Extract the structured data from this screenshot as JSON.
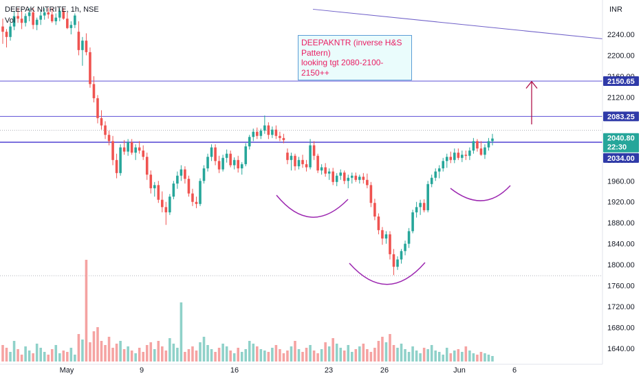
{
  "header": {
    "title": "DEEPAK NITRITE, 1h, NSE",
    "vol_label": "Vol"
  },
  "annotation": {
    "lines": [
      "DEEPAKNTR (inverse H&S",
      "Pattern)",
      "looking tgt 2080-2100-",
      "2150++"
    ]
  },
  "colors": {
    "up": "#26a69a",
    "down": "#ef5350",
    "up_vol": "#8fd1c9",
    "down_vol": "#f5a3a2",
    "level_line": "#5b4fd6",
    "trend_line": "#6e5fc8",
    "arc": "#9c27b0",
    "arrow": "#b0134a",
    "last_price_bg": "#26a69a",
    "level_label_bg": "#2f3aa8"
  },
  "chart_data": {
    "type": "candlestick",
    "symbol": "DEEPAK NITRITE",
    "interval": "1h",
    "exchange": "NSE",
    "currency": "INR",
    "y_range": [
      1620,
      2290
    ],
    "y_ticks": [
      1640,
      1680,
      1720,
      1760,
      1800,
      1840,
      1880,
      1920,
      1960,
      2000,
      2040,
      2080,
      2120,
      2160,
      2200,
      2240
    ],
    "x_ticks": [
      "May",
      "9",
      "16",
      "23",
      "26",
      "Jun",
      "6"
    ],
    "level_lines": [
      2150.65,
      2083.25,
      2034.0
    ],
    "level_labels": [
      "2150.65",
      "2083.25",
      "2034.00"
    ],
    "last_price": "2040.80",
    "countdown": "22:30",
    "dotted_levels": [
      2057,
      1779
    ],
    "trendline": [
      [
        455,
        2288
      ],
      [
        932,
        2224
      ]
    ],
    "pattern": "inverse head and shoulders",
    "target_arrow": [
      2068,
      2150
    ],
    "candles": [
      [
        2255,
        2270,
        2222,
        2245
      ],
      [
        2245,
        2250,
        2215,
        2235
      ],
      [
        2235,
        2262,
        2228,
        2255
      ],
      [
        2255,
        2285,
        2248,
        2275
      ],
      [
        2275,
        2290,
        2262,
        2270
      ],
      [
        2270,
        2285,
        2250,
        2262
      ],
      [
        2262,
        2280,
        2255,
        2275
      ],
      [
        2275,
        2290,
        2265,
        2282
      ],
      [
        2282,
        2290,
        2250,
        2258
      ],
      [
        2258,
        2272,
        2248,
        2268
      ],
      [
        2268,
        2285,
        2258,
        2276
      ],
      [
        2276,
        2290,
        2268,
        2282
      ],
      [
        2282,
        2290,
        2270,
        2278
      ],
      [
        2278,
        2290,
        2262,
        2265
      ],
      [
        2265,
        2280,
        2258,
        2272
      ],
      [
        2272,
        2290,
        2265,
        2285
      ],
      [
        2285,
        2290,
        2268,
        2270
      ],
      [
        2270,
        2282,
        2250,
        2252
      ],
      [
        2252,
        2265,
        2240,
        2258
      ],
      [
        2258,
        2280,
        2252,
        2276
      ],
      [
        2245,
        2265,
        2200,
        2210
      ],
      [
        2210,
        2235,
        2180,
        2228
      ],
      [
        2228,
        2242,
        2200,
        2206
      ],
      [
        2206,
        2215,
        2138,
        2145
      ],
      [
        2145,
        2160,
        2110,
        2118
      ],
      [
        2118,
        2124,
        2070,
        2080
      ],
      [
        2080,
        2095,
        2058,
        2066
      ],
      [
        2066,
        2074,
        2040,
        2048
      ],
      [
        2048,
        2056,
        2028,
        2036
      ],
      [
        2036,
        2046,
        1990,
        2000
      ],
      [
        2000,
        2012,
        1965,
        1975
      ],
      [
        1975,
        2030,
        1970,
        2024
      ],
      [
        2024,
        2038,
        2010,
        2016
      ],
      [
        2016,
        2040,
        2008,
        2034
      ],
      [
        2034,
        2040,
        2010,
        2014
      ],
      [
        2014,
        2030,
        2000,
        2024
      ],
      [
        2024,
        2036,
        2012,
        2018
      ],
      [
        2018,
        2028,
        2000,
        2006
      ],
      [
        2006,
        2014,
        1962,
        1972
      ],
      [
        1972,
        1980,
        1936,
        1946
      ],
      [
        1946,
        1958,
        1930,
        1952
      ],
      [
        1952,
        1960,
        1918,
        1924
      ],
      [
        1924,
        1940,
        1900,
        1910
      ],
      [
        1910,
        1920,
        1876,
        1900
      ],
      [
        1900,
        1935,
        1895,
        1930
      ],
      [
        1930,
        1960,
        1925,
        1955
      ],
      [
        1955,
        1978,
        1945,
        1970
      ],
      [
        1970,
        1990,
        1960,
        1982
      ],
      [
        1982,
        1988,
        1955,
        1964
      ],
      [
        1964,
        1970,
        1930,
        1936
      ],
      [
        1936,
        1945,
        1912,
        1920
      ],
      [
        1920,
        1930,
        1908,
        1916
      ],
      [
        1916,
        1965,
        1912,
        1960
      ],
      [
        1960,
        1990,
        1955,
        1984
      ],
      [
        1984,
        2012,
        1978,
        2006
      ],
      [
        2006,
        2030,
        1998,
        2024
      ],
      [
        2024,
        2030,
        1990,
        1998
      ],
      [
        1998,
        2008,
        1975,
        1982
      ],
      [
        1982,
        2010,
        1978,
        2004
      ],
      [
        2004,
        2020,
        1995,
        2012
      ],
      [
        2012,
        2018,
        1986,
        1990
      ],
      [
        1990,
        2005,
        1982,
        2000
      ],
      [
        2000,
        2008,
        1976,
        1984
      ],
      [
        1984,
        1996,
        1972,
        1992
      ],
      [
        1992,
        2032,
        1988,
        2026
      ],
      [
        2026,
        2048,
        2020,
        2044
      ],
      [
        2044,
        2060,
        2036,
        2054
      ],
      [
        2054,
        2062,
        2040,
        2046
      ],
      [
        2046,
        2060,
        2040,
        2056
      ],
      [
        2056,
        2085,
        2050,
        2066
      ],
      [
        2066,
        2072,
        2040,
        2048
      ],
      [
        2048,
        2064,
        2042,
        2058
      ],
      [
        2058,
        2066,
        2040,
        2046
      ],
      [
        2046,
        2054,
        2036,
        2042
      ],
      [
        2042,
        2050,
        2032,
        2038
      ],
      [
        2014,
        2022,
        1992,
        2000
      ],
      [
        2000,
        2014,
        1980,
        2008
      ],
      [
        2008,
        2012,
        1980,
        1988
      ],
      [
        1988,
        2006,
        1982,
        2000
      ],
      [
        2000,
        2010,
        1985,
        1992
      ],
      [
        1992,
        2000,
        1978,
        1986
      ],
      [
        1986,
        2040,
        1982,
        2028
      ],
      [
        2028,
        2036,
        2000,
        2008
      ],
      [
        2008,
        2012,
        1975,
        1980
      ],
      [
        1980,
        1992,
        1972,
        1986
      ],
      [
        1986,
        1994,
        1968,
        1974
      ],
      [
        1974,
        1984,
        1962,
        1978
      ],
      [
        1978,
        1985,
        1952,
        1958
      ],
      [
        1958,
        1975,
        1950,
        1970
      ],
      [
        1970,
        1982,
        1962,
        1976
      ],
      [
        1976,
        1980,
        1954,
        1960
      ],
      [
        1960,
        1972,
        1946,
        1966
      ],
      [
        1966,
        1976,
        1955,
        1970
      ],
      [
        1970,
        1976,
        1958,
        1962
      ],
      [
        1962,
        1972,
        1955,
        1968
      ],
      [
        1968,
        1975,
        1955,
        1962
      ],
      [
        1962,
        1974,
        1946,
        1952
      ],
      [
        1952,
        1958,
        1910,
        1918
      ],
      [
        1918,
        1926,
        1885,
        1892
      ],
      [
        1892,
        1898,
        1858,
        1866
      ],
      [
        1866,
        1872,
        1838,
        1850
      ],
      [
        1850,
        1864,
        1840,
        1858
      ],
      [
        1858,
        1864,
        1810,
        1820
      ],
      [
        1820,
        1830,
        1780,
        1796
      ],
      [
        1796,
        1816,
        1790,
        1810
      ],
      [
        1810,
        1830,
        1802,
        1826
      ],
      [
        1826,
        1846,
        1818,
        1840
      ],
      [
        1840,
        1870,
        1832,
        1864
      ],
      [
        1864,
        1905,
        1860,
        1900
      ],
      [
        1900,
        1920,
        1890,
        1910
      ],
      [
        1910,
        1924,
        1895,
        1918
      ],
      [
        1918,
        1925,
        1900,
        1904
      ],
      [
        1904,
        1960,
        1900,
        1954
      ],
      [
        1954,
        1972,
        1948,
        1966
      ],
      [
        1966,
        1984,
        1960,
        1978
      ],
      [
        1978,
        1990,
        1965,
        1984
      ],
      [
        1984,
        2004,
        1978,
        1998
      ],
      [
        1998,
        2012,
        1985,
        2006
      ],
      [
        2006,
        2016,
        1994,
        2000
      ],
      [
        2000,
        2022,
        1994,
        2014
      ],
      [
        2014,
        2022,
        2000,
        2004
      ],
      [
        2004,
        2018,
        1996,
        2010
      ],
      [
        2010,
        2018,
        2000,
        2008
      ],
      [
        2008,
        2024,
        2000,
        2018
      ],
      [
        2018,
        2042,
        2012,
        2036
      ],
      [
        2036,
        2040,
        2016,
        2022
      ],
      [
        2022,
        2036,
        2008,
        2010
      ],
      [
        2010,
        2030,
        2002,
        2024
      ],
      [
        2024,
        2042,
        2018,
        2036
      ],
      [
        2036,
        2050,
        2028,
        2041
      ]
    ],
    "volumes": [
      24,
      20,
      14,
      30,
      18,
      10,
      22,
      16,
      12,
      26,
      20,
      14,
      10,
      18,
      24,
      12,
      16,
      14,
      20,
      10,
      40,
      32,
      60,
      28,
      44,
      50,
      30,
      24,
      36,
      20,
      26,
      30,
      18,
      22,
      16,
      12,
      20,
      14,
      24,
      28,
      18,
      30,
      22,
      16,
      34,
      26,
      20,
      24,
      14,
      18,
      22,
      16,
      28,
      36,
      24,
      18,
      14,
      20,
      26,
      22,
      16,
      12,
      20,
      14,
      18,
      30,
      26,
      22,
      18,
      16,
      14,
      20,
      24,
      18,
      12,
      16,
      22,
      30,
      18,
      14,
      20,
      24,
      16,
      12,
      18,
      28,
      22,
      34,
      26,
      20,
      16,
      24,
      14,
      18,
      22,
      26,
      18,
      14,
      20,
      30,
      36,
      28,
      40,
      24,
      20,
      26,
      18,
      14,
      22,
      16,
      12,
      20,
      18,
      24,
      16,
      14,
      10,
      20,
      12,
      16,
      18,
      14,
      22,
      16,
      12,
      10,
      14,
      12,
      10,
      8
    ],
    "big_volumes": {
      "22": 148,
      "47": 86
    }
  }
}
